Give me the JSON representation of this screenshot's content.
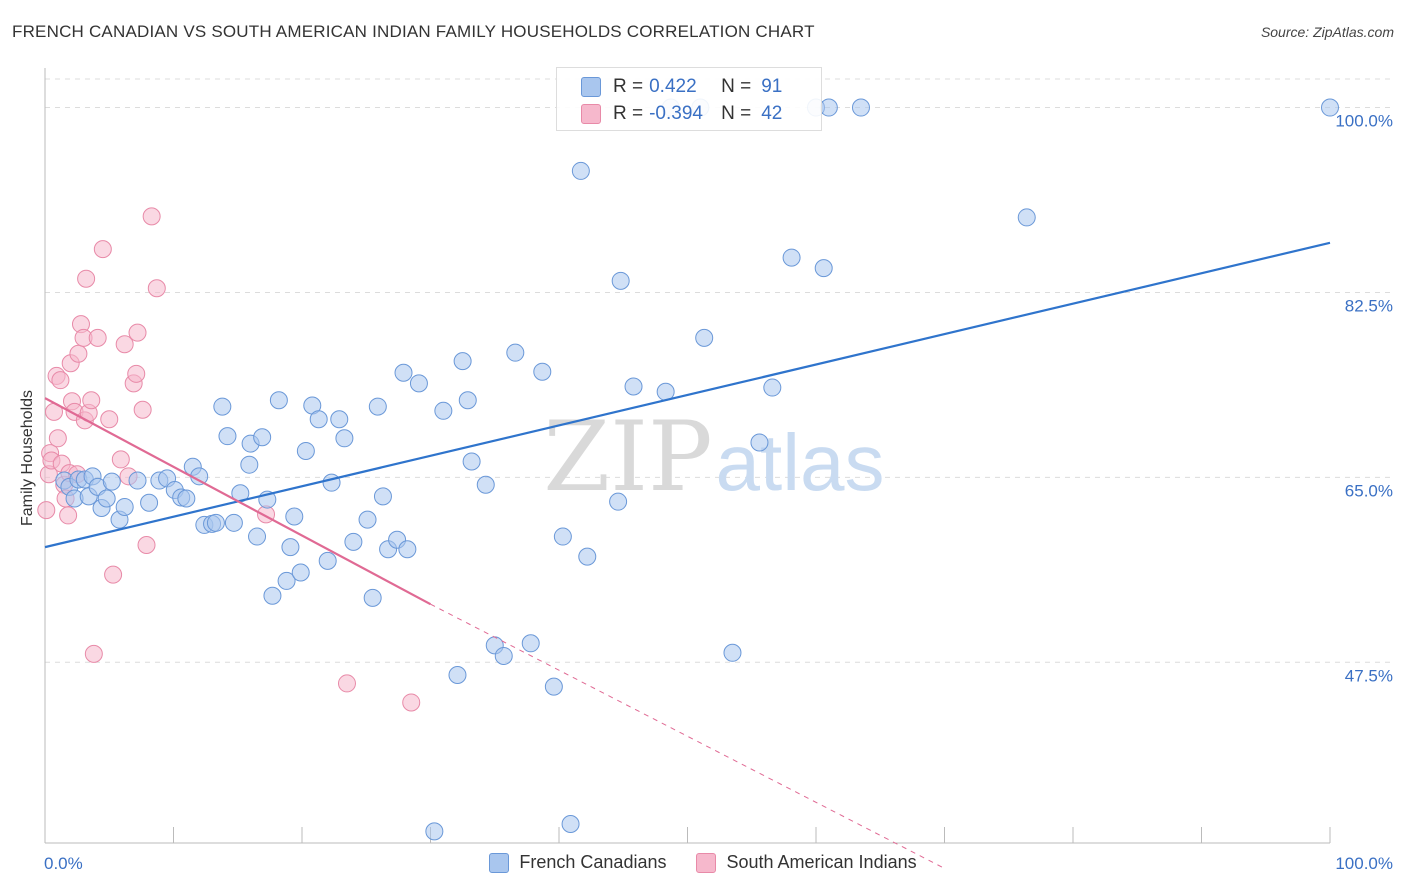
{
  "header": {
    "title": "FRENCH CANADIAN VS SOUTH AMERICAN INDIAN FAMILY HOUSEHOLDS CORRELATION CHART",
    "source": "Source: ZipAtlas.com"
  },
  "legend": {
    "rows": [
      {
        "r_label": "R =",
        "r_value": "0.422",
        "n_label": "N =",
        "n_value": "91"
      },
      {
        "r_label": "R =",
        "r_value": "-0.394",
        "n_label": "N =",
        "n_value": "42"
      }
    ]
  },
  "watermark": {
    "zip": "ZIP",
    "atlas": "atlas"
  },
  "colors": {
    "blue_fill": "#a9c6ee",
    "blue_stroke": "#6a98d8",
    "blue_line": "#2f74cc",
    "pink_fill": "#f6b8cc",
    "pink_stroke": "#e88aa8",
    "pink_line": "#e06a94",
    "axis_text": "#3a70c4"
  },
  "chart_data": {
    "type": "scatter",
    "title": "FRENCH CANADIAN VS SOUTH AMERICAN INDIAN FAMILY HOUSEHOLDS CORRELATION CHART",
    "xlabel": "",
    "ylabel": "Family Households",
    "xlim": [
      0,
      100
    ],
    "ylim": [
      30.4,
      102.7
    ],
    "x_tick_labels": [
      "0.0%",
      "100.0%"
    ],
    "y_ticks": [
      47.5,
      65.0,
      82.5,
      100.0
    ],
    "y_tick_labels": [
      "47.5%",
      "65.0%",
      "82.5%",
      "100.0%"
    ],
    "legend_position": "top-center",
    "series": [
      {
        "name": "French Canadians",
        "color": "#6a98d8",
        "R": 0.422,
        "N": 91,
        "trendline": {
          "x": [
            0,
            100
          ],
          "y": [
            58.4,
            87.2
          ]
        },
        "points": [
          [
            1.5,
            64.7
          ],
          [
            1.9,
            64.1
          ],
          [
            2.3,
            63.0
          ],
          [
            2.6,
            64.8
          ],
          [
            3.1,
            64.8
          ],
          [
            3.4,
            63.2
          ],
          [
            3.7,
            65.1
          ],
          [
            4.1,
            64.1
          ],
          [
            4.4,
            62.1
          ],
          [
            4.8,
            63.0
          ],
          [
            5.2,
            64.6
          ],
          [
            5.8,
            61.0
          ],
          [
            6.2,
            62.2
          ],
          [
            7.2,
            64.7
          ],
          [
            8.1,
            62.6
          ],
          [
            8.9,
            64.7
          ],
          [
            9.5,
            64.9
          ],
          [
            10.1,
            63.8
          ],
          [
            10.6,
            63.1
          ],
          [
            11.0,
            63.0
          ],
          [
            11.5,
            66.0
          ],
          [
            12.0,
            65.1
          ],
          [
            12.4,
            60.5
          ],
          [
            13.0,
            60.6
          ],
          [
            13.3,
            60.7
          ],
          [
            13.8,
            71.7
          ],
          [
            14.2,
            68.9
          ],
          [
            14.7,
            60.7
          ],
          [
            15.2,
            63.5
          ],
          [
            15.9,
            66.2
          ],
          [
            16.0,
            68.2
          ],
          [
            16.5,
            59.4
          ],
          [
            16.9,
            68.8
          ],
          [
            17.3,
            62.9
          ],
          [
            17.7,
            53.8
          ],
          [
            18.2,
            72.3
          ],
          [
            18.8,
            55.2
          ],
          [
            19.1,
            58.4
          ],
          [
            19.4,
            61.3
          ],
          [
            19.9,
            56.0
          ],
          [
            20.3,
            67.5
          ],
          [
            20.8,
            71.8
          ],
          [
            21.3,
            70.5
          ],
          [
            22.0,
            57.1
          ],
          [
            22.3,
            64.5
          ],
          [
            22.9,
            70.5
          ],
          [
            23.3,
            68.7
          ],
          [
            24.0,
            58.9
          ],
          [
            25.1,
            61.0
          ],
          [
            25.5,
            53.6
          ],
          [
            25.9,
            71.7
          ],
          [
            26.3,
            63.2
          ],
          [
            26.7,
            58.2
          ],
          [
            27.4,
            59.1
          ],
          [
            27.9,
            74.9
          ],
          [
            28.2,
            58.2
          ],
          [
            29.1,
            73.9
          ],
          [
            30.3,
            31.5
          ],
          [
            31.0,
            71.3
          ],
          [
            32.1,
            46.3
          ],
          [
            32.5,
            76.0
          ],
          [
            32.9,
            72.3
          ],
          [
            33.2,
            66.5
          ],
          [
            34.3,
            64.3
          ],
          [
            35.0,
            49.1
          ],
          [
            35.7,
            48.1
          ],
          [
            36.6,
            76.8
          ],
          [
            37.8,
            49.3
          ],
          [
            38.7,
            75.0
          ],
          [
            39.6,
            45.2
          ],
          [
            40.3,
            59.4
          ],
          [
            40.9,
            32.2
          ],
          [
            42.2,
            57.5
          ],
          [
            44.6,
            62.7
          ],
          [
            44.8,
            83.6
          ],
          [
            45.8,
            73.6
          ],
          [
            48.3,
            73.1
          ],
          [
            51.3,
            78.2
          ],
          [
            53.5,
            48.4
          ],
          [
            55.6,
            68.3
          ],
          [
            56.6,
            73.5
          ],
          [
            58.1,
            85.8
          ],
          [
            60.0,
            100.0
          ],
          [
            60.6,
            84.8
          ],
          [
            63.5,
            100.0
          ],
          [
            76.4,
            89.6
          ],
          [
            100.0,
            100.0
          ],
          [
            48.7,
            100.0
          ],
          [
            51.0,
            100.0
          ],
          [
            41.7,
            94.0
          ],
          [
            61.0,
            100.0
          ]
        ]
      },
      {
        "name": "South American Indians",
        "color": "#e88aa8",
        "R": -0.394,
        "N": 42,
        "trendline": {
          "x": [
            0,
            30
          ],
          "y": [
            72.5,
            53.0
          ]
        },
        "trendline_dashed": {
          "x": [
            30,
            70
          ],
          "y": [
            53.0,
            28.0
          ]
        },
        "points": [
          [
            0.3,
            65.3
          ],
          [
            0.4,
            67.3
          ],
          [
            0.5,
            66.6
          ],
          [
            0.7,
            71.2
          ],
          [
            0.9,
            74.6
          ],
          [
            1.0,
            68.7
          ],
          [
            1.2,
            74.2
          ],
          [
            1.3,
            66.3
          ],
          [
            1.5,
            64.3
          ],
          [
            1.6,
            63.0
          ],
          [
            1.8,
            61.4
          ],
          [
            1.9,
            65.4
          ],
          [
            2.0,
            75.8
          ],
          [
            2.1,
            72.2
          ],
          [
            2.3,
            71.2
          ],
          [
            2.5,
            65.3
          ],
          [
            2.6,
            76.7
          ],
          [
            2.8,
            79.5
          ],
          [
            3.0,
            78.2
          ],
          [
            3.1,
            70.4
          ],
          [
            3.2,
            83.8
          ],
          [
            3.4,
            71.1
          ],
          [
            3.6,
            72.3
          ],
          [
            3.8,
            48.3
          ],
          [
            4.1,
            78.2
          ],
          [
            4.5,
            86.6
          ],
          [
            5.0,
            70.5
          ],
          [
            5.3,
            55.8
          ],
          [
            5.9,
            66.7
          ],
          [
            6.2,
            77.6
          ],
          [
            6.5,
            65.1
          ],
          [
            6.9,
            73.9
          ],
          [
            7.1,
            74.8
          ],
          [
            7.2,
            78.7
          ],
          [
            7.6,
            71.4
          ],
          [
            7.9,
            58.6
          ],
          [
            8.3,
            89.7
          ],
          [
            8.7,
            82.9
          ],
          [
            23.5,
            45.5
          ],
          [
            17.2,
            61.5
          ],
          [
            28.5,
            43.7
          ],
          [
            0.1,
            61.9
          ]
        ]
      }
    ]
  }
}
